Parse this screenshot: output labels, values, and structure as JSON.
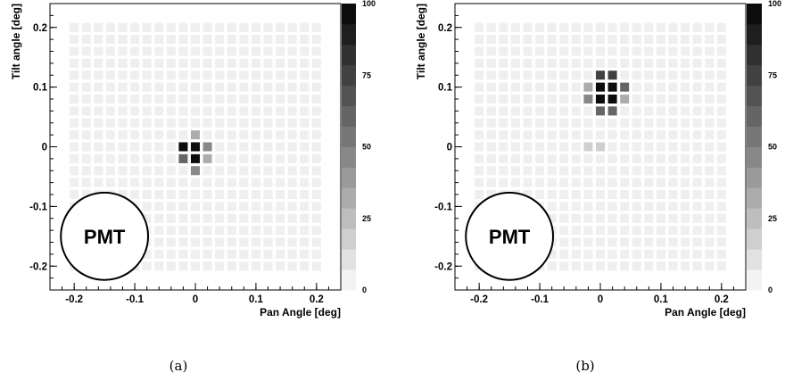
{
  "chart_data": [
    {
      "type": "heatmap",
      "caption": "(a)",
      "xlabel": "Pan Angle [deg]",
      "ylabel": "Tilt angle [deg]",
      "xlim": [
        -0.24,
        0.24
      ],
      "ylim": [
        -0.24,
        0.24
      ],
      "x_ticks": [
        -0.2,
        -0.1,
        0,
        0.1,
        0.2
      ],
      "x_tick_labels": [
        "-0.2",
        "-0.1",
        "0",
        "0.1",
        "0.2"
      ],
      "y_ticks": [
        -0.2,
        -0.1,
        0,
        0.1,
        0.2
      ],
      "y_tick_labels": [
        "-0.2",
        "-0.1",
        "0",
        "0.1",
        "0.2"
      ],
      "colorbar": {
        "min": 0,
        "max": 100,
        "ticks": [
          0,
          25,
          50,
          75,
          100
        ],
        "tick_labels": [
          "0",
          "25",
          "50",
          "75",
          "100"
        ],
        "levels": 14,
        "colormap": "grayscale"
      },
      "grid": {
        "x_min": -0.2,
        "x_max": 0.2,
        "y_min": -0.2,
        "y_max": 0.2,
        "step": 0.02
      },
      "background_value": 5,
      "excluded_region": {
        "label": "PMT",
        "center": [
          -0.15,
          -0.15
        ],
        "radius": 0.072
      },
      "hot_cells": [
        {
          "x": 0.0,
          "y": 0.02,
          "v": 30
        },
        {
          "x": -0.02,
          "y": 0.0,
          "v": 95
        },
        {
          "x": 0.0,
          "y": 0.0,
          "v": 95
        },
        {
          "x": 0.02,
          "y": 0.0,
          "v": 45
        },
        {
          "x": -0.02,
          "y": -0.02,
          "v": 60
        },
        {
          "x": 0.0,
          "y": -0.02,
          "v": 95
        },
        {
          "x": 0.02,
          "y": -0.02,
          "v": 35
        },
        {
          "x": 0.0,
          "y": -0.04,
          "v": 45
        }
      ]
    },
    {
      "type": "heatmap",
      "caption": "(b)",
      "xlabel": "Pan Angle [deg]",
      "ylabel": "Tilt angle [deg]",
      "xlim": [
        -0.24,
        0.24
      ],
      "ylim": [
        -0.24,
        0.24
      ],
      "x_ticks": [
        -0.2,
        -0.1,
        0,
        0.1,
        0.2
      ],
      "x_tick_labels": [
        "-0.2",
        "-0.1",
        "0",
        "0.1",
        "0.2"
      ],
      "y_ticks": [
        -0.2,
        -0.1,
        0,
        0.1,
        0.2
      ],
      "y_tick_labels": [
        "-0.2",
        "-0.1",
        "0",
        "0.1",
        "0.2"
      ],
      "colorbar": {
        "min": 0,
        "max": 100,
        "ticks": [
          0,
          25,
          50,
          75,
          100
        ],
        "tick_labels": [
          "0",
          "25",
          "50",
          "75",
          "100"
        ],
        "levels": 14,
        "colormap": "grayscale"
      },
      "grid": {
        "x_min": -0.2,
        "x_max": 0.2,
        "y_min": -0.2,
        "y_max": 0.2,
        "step": 0.02
      },
      "background_value": 5,
      "excluded_region": {
        "label": "PMT",
        "center": [
          -0.15,
          -0.15
        ],
        "radius": 0.072
      },
      "hot_cells": [
        {
          "x": 0.0,
          "y": 0.12,
          "v": 75
        },
        {
          "x": 0.02,
          "y": 0.12,
          "v": 75
        },
        {
          "x": -0.02,
          "y": 0.1,
          "v": 35
        },
        {
          "x": 0.0,
          "y": 0.1,
          "v": 95
        },
        {
          "x": 0.02,
          "y": 0.1,
          "v": 95
        },
        {
          "x": 0.04,
          "y": 0.1,
          "v": 60
        },
        {
          "x": -0.02,
          "y": 0.08,
          "v": 45
        },
        {
          "x": 0.0,
          "y": 0.08,
          "v": 95
        },
        {
          "x": 0.02,
          "y": 0.08,
          "v": 95
        },
        {
          "x": 0.04,
          "y": 0.08,
          "v": 35
        },
        {
          "x": 0.0,
          "y": 0.06,
          "v": 60
        },
        {
          "x": 0.02,
          "y": 0.06,
          "v": 60
        },
        {
          "x": -0.02,
          "y": 0.0,
          "v": 20
        },
        {
          "x": 0.0,
          "y": 0.0,
          "v": 15
        }
      ]
    }
  ]
}
